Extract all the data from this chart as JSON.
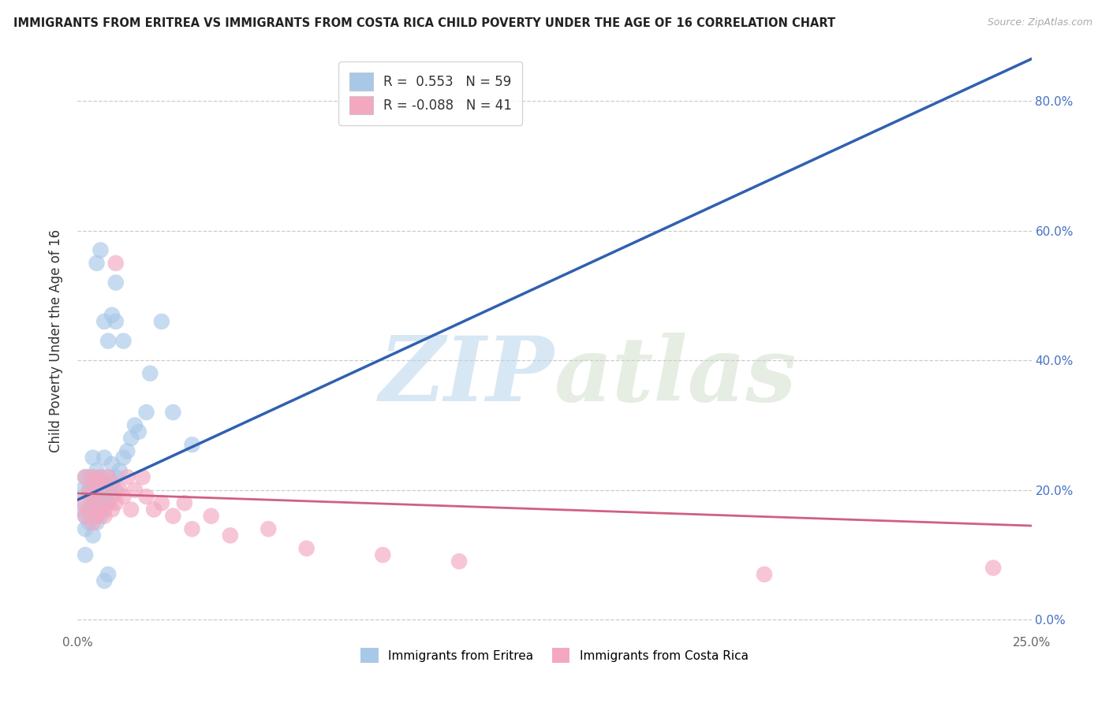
{
  "title": "IMMIGRANTS FROM ERITREA VS IMMIGRANTS FROM COSTA RICA CHILD POVERTY UNDER THE AGE OF 16 CORRELATION CHART",
  "source": "Source: ZipAtlas.com",
  "ylabel": "Child Poverty Under the Age of 16",
  "xlim": [
    0.0,
    0.25
  ],
  "ylim": [
    -0.02,
    0.88
  ],
  "xticks": [
    0.0,
    0.05,
    0.1,
    0.15,
    0.2,
    0.25
  ],
  "xticklabels": [
    "0.0%",
    "",
    "",
    "",
    "",
    "25.0%"
  ],
  "yticks": [
    0.0,
    0.2,
    0.4,
    0.6,
    0.8
  ],
  "yticklabels_right": [
    "0.0%",
    "20.0%",
    "40.0%",
    "60.0%",
    "80.0%"
  ],
  "blue_R": "0.553",
  "blue_N": "59",
  "pink_R": "-0.088",
  "pink_N": "41",
  "blue_dot_color": "#a8c8e8",
  "pink_dot_color": "#f4a8c0",
  "blue_line_color": "#3060b0",
  "pink_line_color": "#d06080",
  "watermark_zip": "ZIP",
  "watermark_atlas": "atlas",
  "legend_label_blue": "Immigrants from Eritrea",
  "legend_label_pink": "Immigrants from Costa Rica",
  "blue_line_x0": 0.0,
  "blue_line_y0": 0.185,
  "blue_line_x1": 0.25,
  "blue_line_y1": 0.865,
  "pink_line_x0": 0.0,
  "pink_line_y0": 0.195,
  "pink_line_x1": 0.25,
  "pink_line_y1": 0.145,
  "blue_scatter_x": [
    0.001,
    0.001,
    0.002,
    0.002,
    0.002,
    0.002,
    0.003,
    0.003,
    0.003,
    0.003,
    0.003,
    0.004,
    0.004,
    0.004,
    0.004,
    0.004,
    0.004,
    0.005,
    0.005,
    0.005,
    0.005,
    0.005,
    0.006,
    0.006,
    0.006,
    0.006,
    0.007,
    0.007,
    0.007,
    0.007,
    0.008,
    0.008,
    0.008,
    0.009,
    0.009,
    0.009,
    0.01,
    0.01,
    0.011,
    0.012,
    0.013,
    0.014,
    0.015,
    0.016,
    0.018,
    0.019,
    0.022,
    0.025,
    0.03,
    0.01,
    0.01,
    0.005,
    0.006,
    0.007,
    0.008,
    0.009,
    0.012,
    0.008,
    0.007
  ],
  "blue_scatter_y": [
    0.17,
    0.2,
    0.1,
    0.14,
    0.16,
    0.22,
    0.15,
    0.17,
    0.19,
    0.2,
    0.22,
    0.13,
    0.16,
    0.18,
    0.2,
    0.22,
    0.25,
    0.15,
    0.17,
    0.19,
    0.21,
    0.23,
    0.16,
    0.18,
    0.2,
    0.22,
    0.17,
    0.19,
    0.21,
    0.25,
    0.18,
    0.2,
    0.22,
    0.19,
    0.21,
    0.24,
    0.2,
    0.22,
    0.23,
    0.25,
    0.26,
    0.28,
    0.3,
    0.29,
    0.32,
    0.38,
    0.46,
    0.32,
    0.27,
    0.46,
    0.52,
    0.55,
    0.57,
    0.46,
    0.43,
    0.47,
    0.43,
    0.07,
    0.06
  ],
  "pink_scatter_x": [
    0.001,
    0.002,
    0.002,
    0.003,
    0.003,
    0.004,
    0.004,
    0.004,
    0.005,
    0.005,
    0.005,
    0.006,
    0.006,
    0.007,
    0.007,
    0.008,
    0.008,
    0.009,
    0.009,
    0.01,
    0.01,
    0.011,
    0.012,
    0.013,
    0.014,
    0.015,
    0.017,
    0.018,
    0.02,
    0.022,
    0.025,
    0.028,
    0.03,
    0.035,
    0.04,
    0.05,
    0.06,
    0.08,
    0.1,
    0.18,
    0.24
  ],
  "pink_scatter_y": [
    0.18,
    0.16,
    0.22,
    0.17,
    0.2,
    0.15,
    0.19,
    0.22,
    0.16,
    0.18,
    0.21,
    0.17,
    0.22,
    0.16,
    0.2,
    0.18,
    0.22,
    0.17,
    0.21,
    0.18,
    0.55,
    0.2,
    0.19,
    0.22,
    0.17,
    0.2,
    0.22,
    0.19,
    0.17,
    0.18,
    0.16,
    0.18,
    0.14,
    0.16,
    0.13,
    0.14,
    0.11,
    0.1,
    0.09,
    0.07,
    0.08
  ],
  "background_color": "#ffffff",
  "grid_color": "#cccccc"
}
